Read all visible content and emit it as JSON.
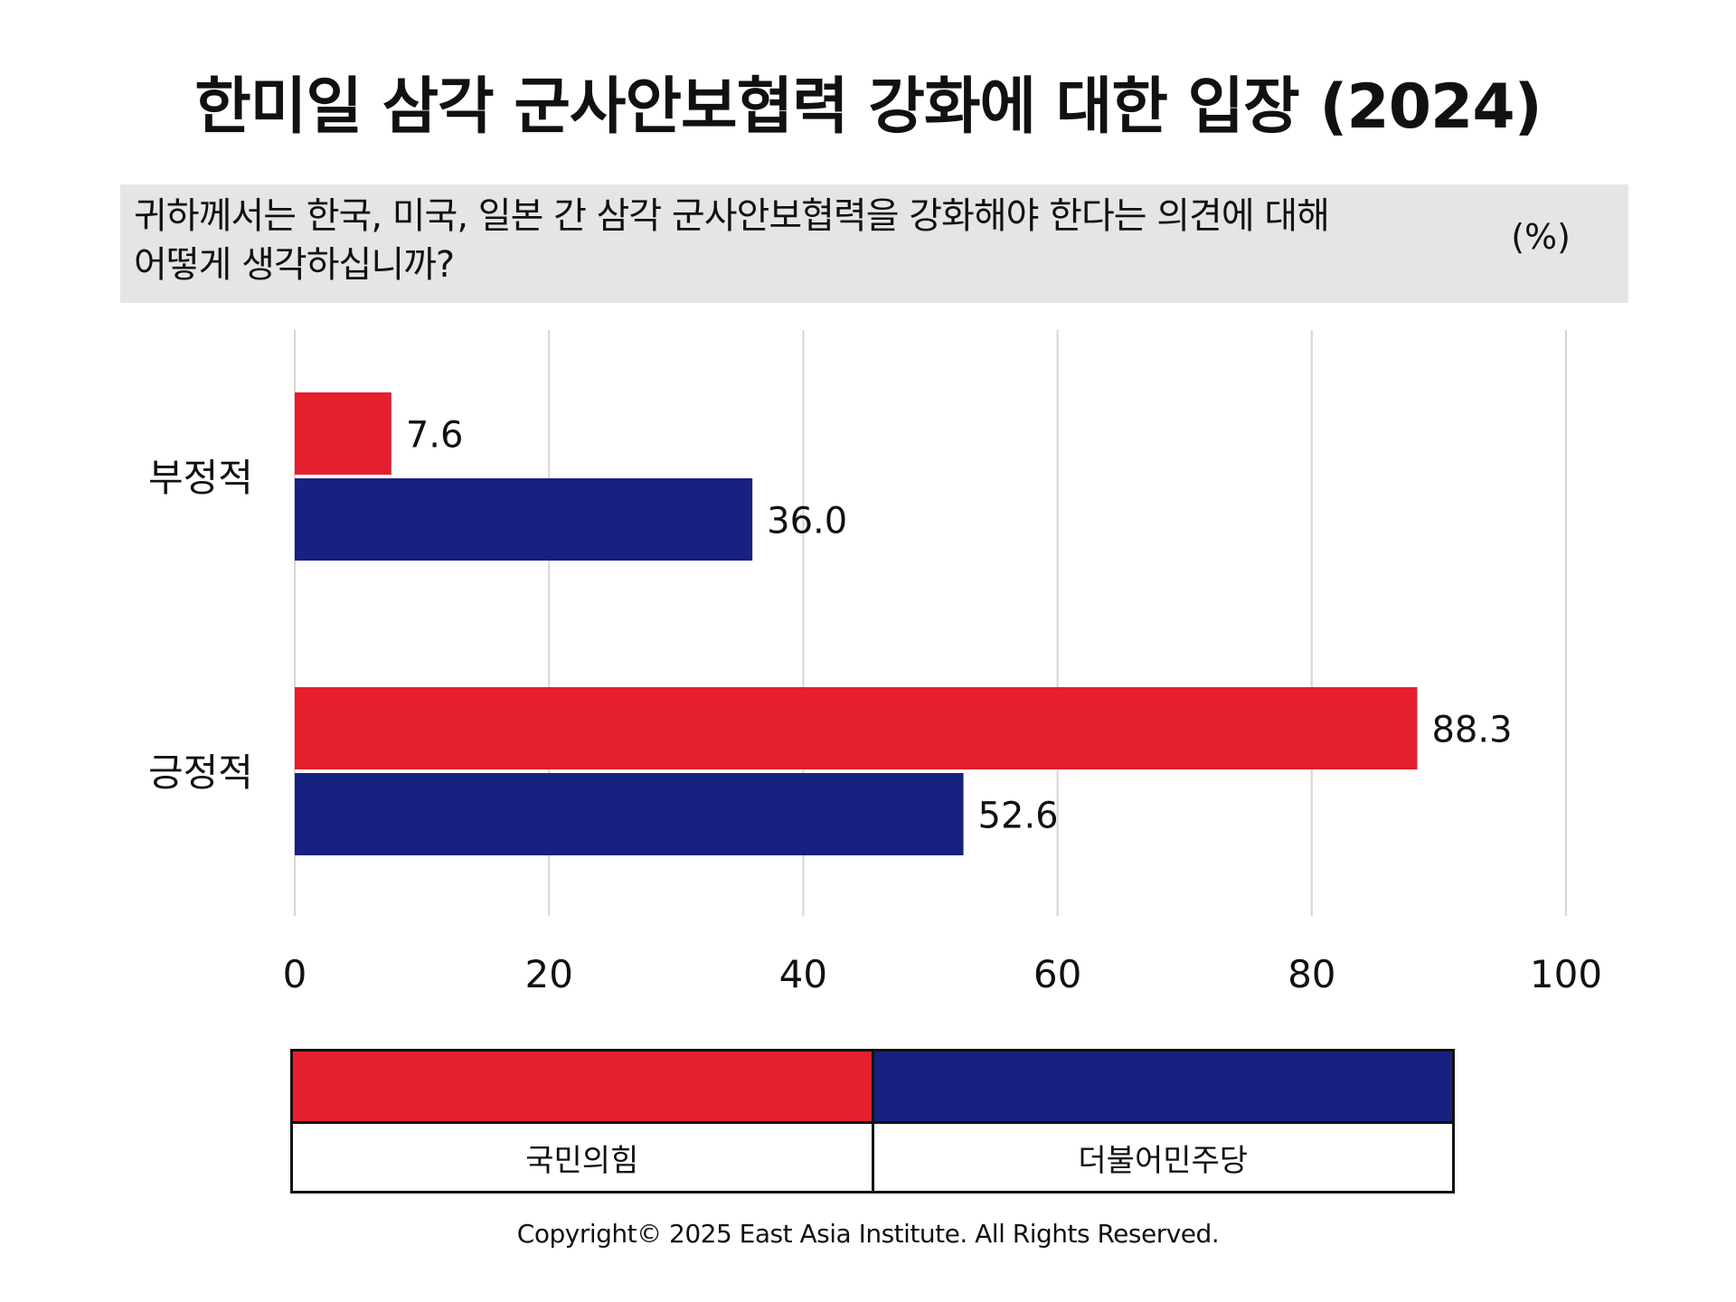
{
  "title": "한미일 삼각 군사안보협력 강화에 대한 입장 (2024)",
  "question": {
    "line1": "귀하께서는 한국, 미국, 일본 간 삼각 군사안보협력을 강화해야 한다는 의견에 대해",
    "line2": "어떻게 생각하십니까?",
    "unit": "(%)"
  },
  "chart_data": {
    "type": "bar",
    "orientation": "horizontal",
    "categories": [
      "부정적",
      "긍정적"
    ],
    "series": [
      {
        "name": "국민의힘",
        "color": "#e51f2e",
        "values": [
          7.6,
          88.3
        ],
        "labels": [
          "7.6",
          "88.3"
        ]
      },
      {
        "name": "더불어민주당",
        "color": "#172180",
        "values": [
          36.0,
          52.6
        ],
        "labels": [
          "36.0",
          "52.6"
        ]
      }
    ],
    "xlim": [
      0,
      100
    ],
    "xticks": [
      0,
      20,
      40,
      60,
      80,
      100
    ],
    "grid": true,
    "legend_position": "bottom"
  },
  "legend": {
    "items": [
      {
        "label": "국민의힘",
        "color": "#e51f2e"
      },
      {
        "label": "더불어민주당",
        "color": "#172180"
      }
    ]
  },
  "footer": {
    "copyright": "Copyright© 2025 East Asia Institute. All Rights Reserved."
  }
}
